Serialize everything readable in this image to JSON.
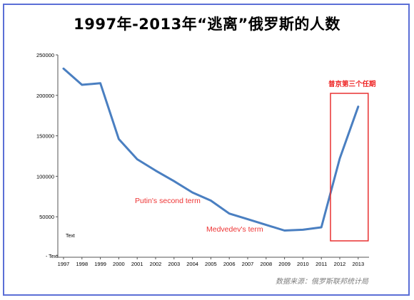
{
  "chart_data": {
    "type": "line",
    "title": "1997年-2013年“逃离”俄罗斯的人数",
    "x": [
      "1997",
      "1998",
      "1999",
      "2000",
      "2001",
      "2002",
      "2003",
      "2004",
      "2005",
      "2006",
      "2007",
      "2008",
      "2009",
      "2010",
      "2011",
      "2012",
      "2013"
    ],
    "series": [
      {
        "values": [
          233000,
          213000,
          215000,
          146000,
          121000,
          107000,
          94000,
          80000,
          70000,
          54000,
          47000,
          40000,
          33000,
          34000,
          37000,
          122000,
          186000
        ]
      }
    ],
    "y_ticks": [
      "250000",
      "200000",
      "150000",
      "100000",
      "50000"
    ],
    "ylim": [
      0,
      250000
    ],
    "grid": false,
    "line_color": "#4a7fc1",
    "annotations": {
      "putin_second": "Putin's second term",
      "medvedev": "Medvedev's term",
      "putin_third": "普京第三个任期",
      "text_label": "Text",
      "axis_placeholder": "- Text"
    },
    "highlight_color": "#e83030",
    "highlight_range": [
      "2012",
      "2013"
    ]
  },
  "source": "数据来源：俄罗斯联邦统计局",
  "frame_color": "#5b6fd6"
}
